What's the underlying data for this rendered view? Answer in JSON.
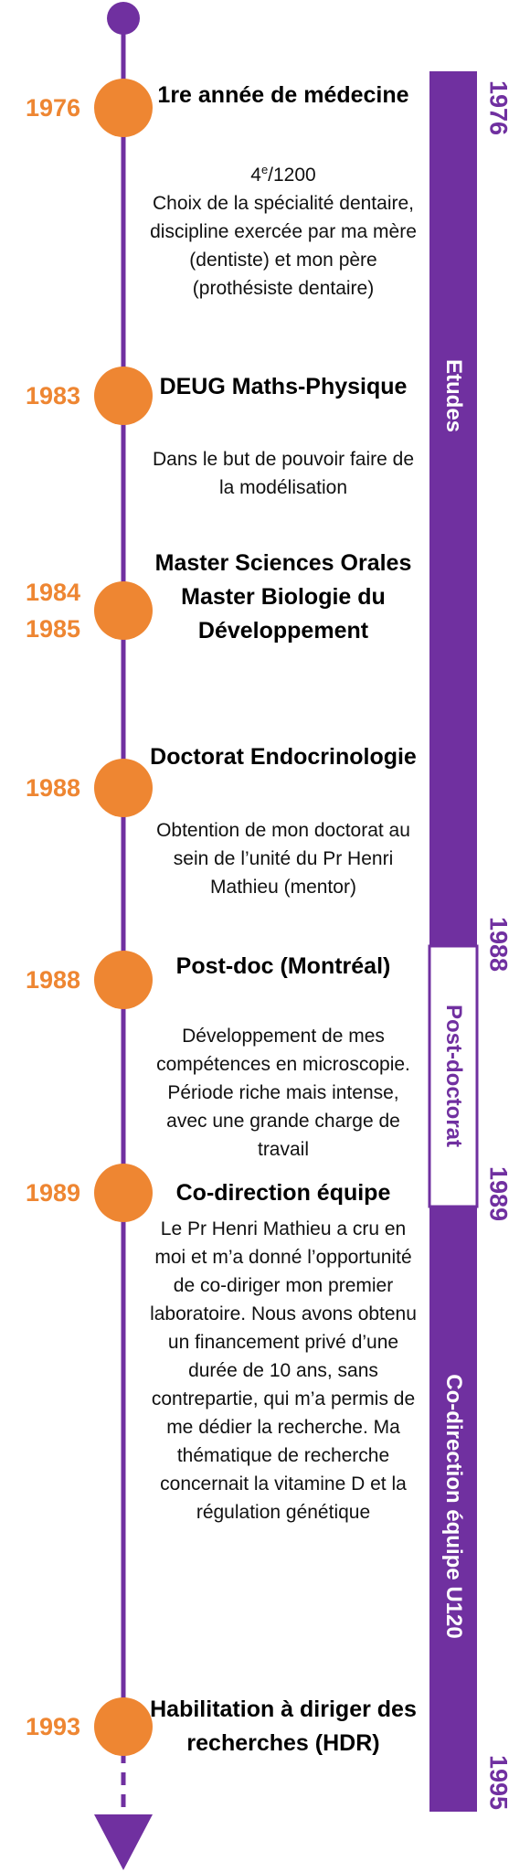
{
  "colors": {
    "purple": "#7030a0",
    "orange": "#ee8632",
    "white": "#ffffff"
  },
  "events": [
    {
      "year": "1976",
      "title": "1re année de médecine",
      "desc_prefix": "4",
      "desc_sup": "e",
      "desc_suffix": "/1200",
      "desc": "Choix de la spécialité dentaire, discipline exercée par ma mère (dentiste) et mon père (prothésiste dentaire)"
    },
    {
      "year": "1983",
      "title": "DEUG Maths-Physique",
      "desc": "Dans le but de pouvoir faire de la modélisation"
    },
    {
      "years": [
        "1984",
        "1985"
      ],
      "titles": [
        "Master Sciences Orales",
        "Master Biologie du Développement"
      ]
    },
    {
      "year": "1988",
      "title": "Doctorat Endocrinologie",
      "desc": "Obtention de mon doctorat au sein de l’unité du Pr Henri Mathieu (mentor)"
    },
    {
      "year": "1988",
      "title": "Post-doc (Montréal)",
      "desc": "Développement de mes compétences en microscopie. Période riche mais intense, avec une grande charge de travail"
    },
    {
      "year": "1989",
      "title": "Co-direction équipe",
      "desc": "Le Pr Henri Mathieu a cru en moi et m’a donné l’opportunité de co-diriger mon premier laboratoire. Nous avons obtenu un financement privé d’une durée de 10 ans, sans contrepartie, qui m’a permis de me dédier la recherche. Ma thématique de recherche concernait la vitamine D et la régulation génétique"
    },
    {
      "year": "1993",
      "title": "Habilitation à diriger des recherches (HDR)"
    }
  ],
  "periods": [
    {
      "label": "Etudes",
      "start": "1976",
      "end": "1988"
    },
    {
      "label": "Post-doctorat",
      "start": "1988",
      "end": "1989"
    },
    {
      "label": "Co-direction équipe U120",
      "start": "1989",
      "end": "1995"
    }
  ]
}
